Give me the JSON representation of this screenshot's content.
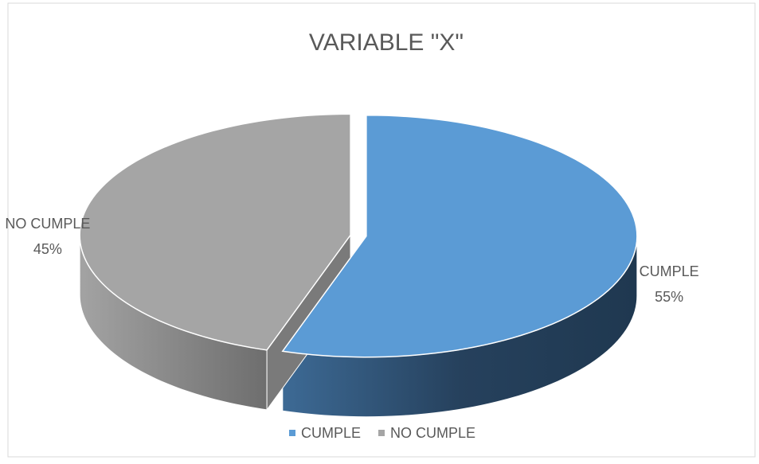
{
  "chart_data": {
    "type": "pie",
    "title": "VARIABLE \"X\"",
    "categories": [
      "CUMPLE",
      "NO CUMPLE"
    ],
    "values": [
      55,
      45
    ],
    "value_labels": [
      "55%",
      "45%"
    ],
    "colors": [
      "#5b9bd5",
      "#a5a5a5"
    ],
    "legend": "bottom",
    "three_d": true
  }
}
